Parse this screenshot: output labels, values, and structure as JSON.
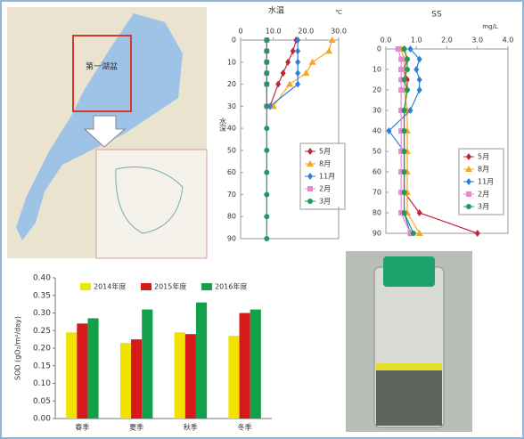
{
  "map": {
    "label": "第一湖盆"
  },
  "chart_data": [
    {
      "type": "profile",
      "title": "水温",
      "x_unit": "℃",
      "y_label": "水深",
      "y": [
        0,
        5,
        10,
        15,
        20,
        30,
        40,
        50,
        60,
        70,
        80,
        90
      ],
      "y_inverted": true,
      "xlim": [
        0,
        30
      ],
      "xticks": [
        0,
        {
          "value": 10,
          "label": "10.0"
        },
        {
          "value": 20,
          "label": "20.0"
        },
        {
          "value": 30,
          "label": "30.0"
        }
      ],
      "ylim": [
        0,
        90
      ],
      "yticks": [
        0,
        10,
        20,
        30,
        40,
        50,
        60,
        70,
        80,
        90
      ],
      "series": [
        {
          "name": "5月",
          "color": "#c0263a",
          "marker": "diamond",
          "values": [
            17,
            16,
            14.5,
            13,
            11.5,
            9,
            null,
            null,
            null,
            null,
            null,
            null
          ]
        },
        {
          "name": "8月",
          "color": "#f5a623",
          "marker": "triangle",
          "values": [
            28,
            27,
            22,
            20,
            15,
            10,
            null,
            null,
            null,
            null,
            null,
            null
          ]
        },
        {
          "name": "11月",
          "color": "#2f7fd6",
          "marker": "diamond",
          "values": [
            17.5,
            17.5,
            17.5,
            17.5,
            17.5,
            9,
            null,
            null,
            null,
            null,
            null,
            null
          ]
        },
        {
          "name": "2月",
          "color": "#e58ad0",
          "marker": "square",
          "values": [
            8,
            8,
            8,
            8,
            8,
            8,
            null,
            null,
            null,
            null,
            null,
            null
          ]
        },
        {
          "name": "3月",
          "color": "#1e9b5c",
          "marker": "circle",
          "values": [
            8,
            8,
            8,
            8,
            8,
            8,
            8,
            8,
            8,
            8,
            8,
            8
          ]
        }
      ]
    },
    {
      "type": "profile",
      "title": "SS",
      "x_unit": "mg/L",
      "y": [
        0,
        5,
        10,
        15,
        20,
        30,
        40,
        50,
        60,
        70,
        80,
        90
      ],
      "y_inverted": true,
      "xlim": [
        0,
        4
      ],
      "xticks": [
        {
          "value": 0,
          "label": "0.0"
        },
        {
          "value": 1,
          "label": "1.0"
        },
        {
          "value": 2,
          "label": "2.0"
        },
        {
          "value": 3,
          "label": "3.0"
        },
        {
          "value": 4,
          "label": "4.0"
        }
      ],
      "ylim": [
        0,
        90
      ],
      "yticks": [
        0,
        10,
        20,
        30,
        40,
        50,
        60,
        70,
        80,
        90
      ],
      "series": [
        {
          "name": "5月",
          "color": "#c0263a",
          "marker": "diamond",
          "values": [
            0.6,
            0.7,
            0.6,
            0.7,
            0.7,
            0.6,
            0.6,
            0.6,
            0.6,
            0.6,
            1.1,
            3.0
          ]
        },
        {
          "name": "8月",
          "color": "#f5a623",
          "marker": "triangle",
          "values": [
            0.5,
            0.6,
            0.6,
            0.6,
            0.6,
            0.7,
            0.7,
            0.7,
            0.7,
            0.7,
            0.7,
            1.1
          ]
        },
        {
          "name": "11月",
          "color": "#2f7fd6",
          "marker": "diamond",
          "values": [
            0.8,
            1.1,
            1.0,
            1.1,
            1.1,
            0.8,
            0.1,
            0.6,
            0.6,
            0.6,
            0.6,
            0.8
          ]
        },
        {
          "name": "2月",
          "color": "#e58ad0",
          "marker": "square",
          "values": [
            0.4,
            0.5,
            0.5,
            0.5,
            0.5,
            0.5,
            0.5,
            0.5,
            0.5,
            0.5,
            0.5,
            0.8
          ]
        },
        {
          "name": "3月",
          "color": "#1e9b5c",
          "marker": "circle",
          "values": [
            0.6,
            0.7,
            0.7,
            0.6,
            0.7,
            0.6,
            0.6,
            0.6,
            0.6,
            0.6,
            0.6,
            0.9
          ]
        }
      ]
    },
    {
      "type": "bar",
      "y_label": "SOD (gO₂/m²/day)",
      "categories": [
        "春季",
        "夏季",
        "秋季",
        "冬季"
      ],
      "ylim": [
        0,
        0.4
      ],
      "yticks": [
        {
          "value": 0,
          "label": "0.00"
        },
        {
          "value": 0.05,
          "label": "0.05"
        },
        {
          "value": 0.1,
          "label": "0.10"
        },
        {
          "value": 0.15,
          "label": "0.15"
        },
        {
          "value": 0.2,
          "label": "0.20"
        },
        {
          "value": 0.25,
          "label": "0.25"
        },
        {
          "value": 0.3,
          "label": "0.30"
        },
        {
          "value": 0.35,
          "label": "0.35"
        },
        {
          "value": 0.4,
          "label": "0.40"
        }
      ],
      "series": [
        {
          "name": "2014年度",
          "color": "#f2e200",
          "values": [
            0.245,
            0.215,
            0.245,
            0.235
          ]
        },
        {
          "name": "2015年度",
          "color": "#d7191c",
          "values": [
            0.27,
            0.225,
            0.24,
            0.3
          ]
        },
        {
          "name": "2016年度",
          "color": "#13a04a",
          "values": [
            0.285,
            0.31,
            0.33,
            0.31
          ]
        }
      ]
    }
  ]
}
